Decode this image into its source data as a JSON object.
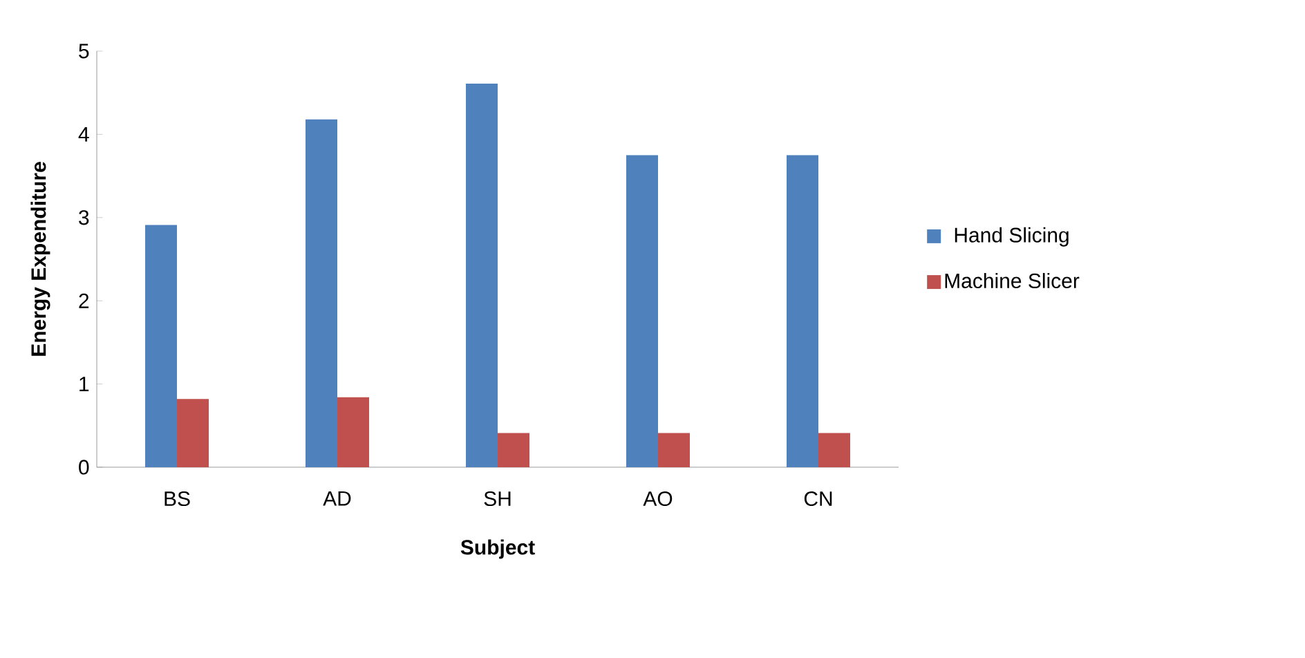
{
  "chart_data": {
    "type": "bar",
    "xlabel": "Subject",
    "ylabel": "Energy Expenditure",
    "categories": [
      "BS",
      "AD",
      "SH",
      "AO",
      "CN"
    ],
    "series": [
      {
        "name": "Hand Slicing",
        "color": "#4f81bd",
        "values": [
          2.91,
          4.18,
          4.61,
          3.75,
          3.75
        ]
      },
      {
        "name": "Machine Slicer",
        "color": "#c0504d",
        "values": [
          0.82,
          0.84,
          0.41,
          0.41,
          0.41
        ]
      }
    ],
    "ylim": [
      0,
      5
    ],
    "yticks": [
      0,
      1,
      2,
      3,
      4,
      5
    ],
    "grid": false,
    "legend": "right"
  }
}
